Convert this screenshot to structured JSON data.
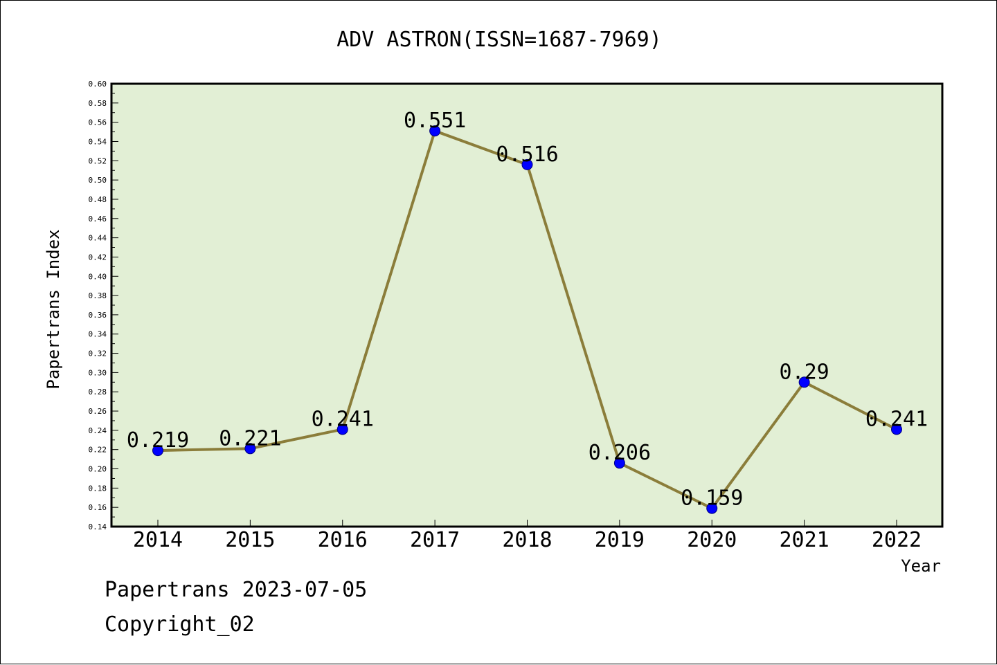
{
  "chart_data": {
    "type": "line",
    "title": "ADV ASTRON(ISSN=1687-7969)",
    "xlabel": "Year",
    "ylabel": "Papertrans Index",
    "categories": [
      "2014",
      "2015",
      "2016",
      "2017",
      "2018",
      "2019",
      "2020",
      "2021",
      "2022"
    ],
    "series": [
      {
        "values": [
          0.219,
          0.221,
          0.241,
          0.551,
          0.516,
          0.206,
          0.159,
          0.29,
          0.241
        ],
        "labels": [
          "0.219",
          "0.221",
          "0.241",
          "0.551",
          "0.516",
          "0.206",
          "0.159",
          "0.29",
          "0.241"
        ],
        "line_color": "#8B7D3A",
        "marker_color": "#0000FF"
      }
    ],
    "ylim": [
      0.14,
      0.6
    ],
    "yticks": [
      "0.14",
      "0.16",
      "0.18",
      "0.20",
      "0.22",
      "0.24",
      "0.26",
      "0.28",
      "0.30",
      "0.32",
      "0.34",
      "0.36",
      "0.38",
      "0.40",
      "0.42",
      "0.44",
      "0.46",
      "0.48",
      "0.50",
      "0.52",
      "0.54",
      "0.56",
      "0.58",
      "0.60"
    ],
    "grid": false,
    "plot_background": "#E2EFD5"
  },
  "footer": {
    "line1": "Papertrans 2023-07-05",
    "line2": "Copyright_02"
  }
}
